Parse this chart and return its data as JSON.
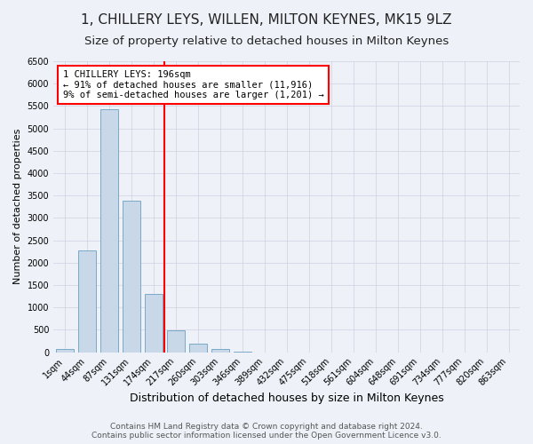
{
  "title": "1, CHILLERY LEYS, WILLEN, MILTON KEYNES, MK15 9LZ",
  "subtitle": "Size of property relative to detached houses in Milton Keynes",
  "xlabel": "Distribution of detached houses by size in Milton Keynes",
  "ylabel": "Number of detached properties",
  "footer_line1": "Contains HM Land Registry data © Crown copyright and database right 2024.",
  "footer_line2": "Contains public sector information licensed under the Open Government Licence v3.0.",
  "categories": [
    "1sqm",
    "44sqm",
    "87sqm",
    "131sqm",
    "174sqm",
    "217sqm",
    "260sqm",
    "303sqm",
    "346sqm",
    "389sqm",
    "432sqm",
    "475sqm",
    "518sqm",
    "561sqm",
    "604sqm",
    "648sqm",
    "691sqm",
    "734sqm",
    "777sqm",
    "820sqm",
    "863sqm"
  ],
  "values": [
    70,
    2270,
    5420,
    3390,
    1310,
    490,
    190,
    80,
    20,
    0,
    0,
    0,
    0,
    0,
    0,
    0,
    0,
    0,
    0,
    0,
    0
  ],
  "bar_color": "#c8d8e8",
  "bar_edge_color": "#7aaac8",
  "vline_color": "red",
  "annotation_text": "1 CHILLERY LEYS: 196sqm\n← 91% of detached houses are smaller (11,916)\n9% of semi-detached houses are larger (1,201) →",
  "annotation_box_color": "white",
  "annotation_box_edge_color": "red",
  "ylim": [
    0,
    6500
  ],
  "yticks": [
    0,
    500,
    1000,
    1500,
    2000,
    2500,
    3000,
    3500,
    4000,
    4500,
    5000,
    5500,
    6000,
    6500
  ],
  "grid_color": "#d0d0e0",
  "bg_color": "#eef2f8",
  "title_fontsize": 11,
  "subtitle_fontsize": 9.5,
  "xlabel_fontsize": 9,
  "ylabel_fontsize": 8,
  "tick_fontsize": 7,
  "footer_fontsize": 6.5,
  "vline_pos": 4.51
}
